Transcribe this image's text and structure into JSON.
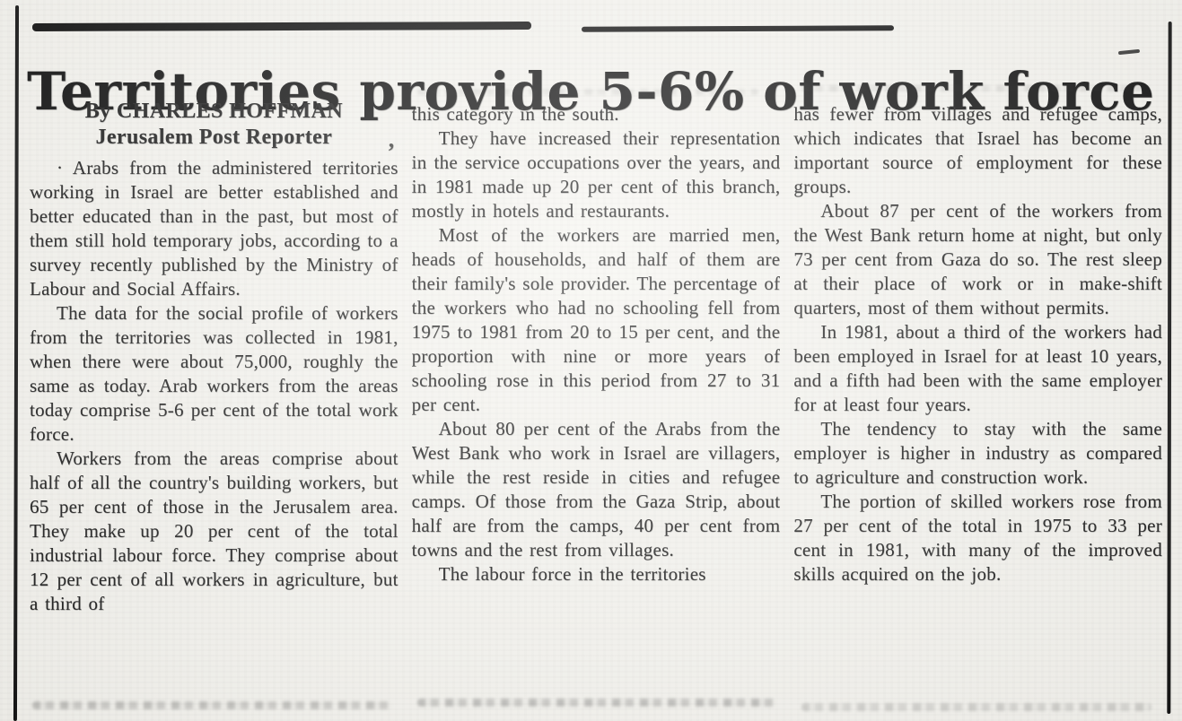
{
  "colors": {
    "paper": "#f6f5f0",
    "ink": "#1b1b1b"
  },
  "headline": "Territories provide 5-6% of work force",
  "byline": {
    "line1": "By CHARLES HOFFMAN",
    "line2": "Jerusalem Post Reporter",
    "artifact_mark": ","
  },
  "article": {
    "columns": [
      {
        "paragraphs": [
          {
            "indent": true,
            "lead_mark": "·",
            "text": "Arabs from the administered territories working in Israel are better established and better educated than in the past, but most of them still hold temporary jobs, according to a survey recently published by the Ministry of Labour and Social Affairs."
          },
          {
            "indent": true,
            "text": "The data for the social profile of workers from the territories was collected in 1981, when there were about 75,000, roughly the same as today. Arab workers from the areas today comprise 5-6 per cent of the total work force."
          },
          {
            "indent": true,
            "text": "Workers from the areas comprise about half of all the country's building workers, but 65 per cent of those in the Jerusalem area. They make up 20 per cent of the total industrial labour force. They comprise about 12 per cent of all workers in agriculture, but a third of"
          }
        ]
      },
      {
        "paragraphs": [
          {
            "indent": false,
            "text": "this category in the south."
          },
          {
            "indent": true,
            "text": "They have increased their representation in the service occupations over the years, and in 1981 made up 20 per cent of this branch, mostly in hotels and restaurants."
          },
          {
            "indent": true,
            "text": "Most of the workers are married men, heads of households, and half of them are their family's sole provider. The percentage of the workers who had no schooling fell from 1975 to 1981 from 20 to 15 per cent, and the proportion with nine or more years of schooling rose in this period from 27 to 31 per cent."
          },
          {
            "indent": true,
            "text": "About 80 per cent of the Arabs from the West Bank who work in Israel are villagers, while the rest reside in cities and refugee camps. Of those from the Gaza Strip, about half are from the camps, 40 per cent from towns and the rest from villages."
          },
          {
            "indent": true,
            "text": "The labour force in the territories"
          }
        ]
      },
      {
        "paragraphs": [
          {
            "indent": false,
            "text": "has fewer from villages and refugee camps, which indicates that Israel has become an important source of employment for these groups."
          },
          {
            "indent": true,
            "text": "About 87 per cent of the workers from the West Bank return home at night, but only 73 per cent from Gaza do so. The rest sleep at their place of work or in make-shift quarters, most of them without permits."
          },
          {
            "indent": true,
            "text": "In 1981, about a third of the workers had been employed in Israel for at least 10 years, and a fifth had been with the same employer for at least four years."
          },
          {
            "indent": true,
            "text": "The tendency to stay with the same employer is higher in industry as compared to agriculture and construction work."
          },
          {
            "indent": true,
            "text": "The portion of skilled workers rose from 27 per cent of the total in 1975 to 33 per cent in 1981, with many of the improved skills acquired on the job."
          }
        ]
      }
    ]
  }
}
